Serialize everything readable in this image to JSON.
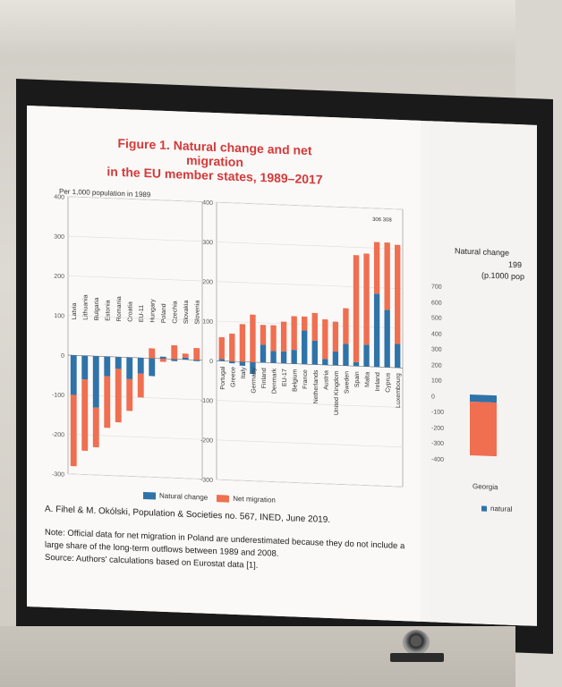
{
  "slide": {
    "title_line1": "Figure 1. Natural change and net migration",
    "title_line2": "in the EU member states, 1989–2017",
    "subtitle": "Per 1,000 population in 1989",
    "citation": "A. Fihel & M. Okólski, Population & Societies no. 567, INED, June 2019.",
    "note": "Note: Official data for net migration in Poland are underestimated because they do not include a large share of the long-term outflows between 1989 and 2008.",
    "source": "Source: Authors' calculations based on Eurostat data [1]."
  },
  "colors": {
    "natural": "#2f73a8",
    "migration": "#ef6f50",
    "title": "#d33a3a"
  },
  "chart_data": [
    {
      "type": "bar",
      "title": "",
      "ylim": [
        -300,
        400
      ],
      "yticks": [
        400,
        300,
        200,
        100,
        0,
        -100,
        -200,
        -300
      ],
      "categories": [
        "Latvia",
        "Lithuania",
        "Bulgaria",
        "Estonia",
        "Romania",
        "Croatia",
        "EU-11",
        "Hungary",
        "Poland",
        "Czechia",
        "Slovakia",
        "Slovenia"
      ],
      "series": [
        {
          "name": "Natural change",
          "values": [
            -100,
            -60,
            -130,
            -50,
            -30,
            -55,
            -40,
            -45,
            5,
            -5,
            5,
            -3
          ]
        },
        {
          "name": "Net migration",
          "values": [
            -180,
            -180,
            -100,
            -130,
            -135,
            -80,
            -60,
            25,
            -8,
            35,
            10,
            30
          ]
        }
      ]
    },
    {
      "type": "bar",
      "title": "",
      "ylim": [
        -300,
        400
      ],
      "yticks": [
        400,
        300,
        200,
        100,
        0,
        -100,
        -200,
        -300
      ],
      "categories": [
        "Portugal",
        "Greece",
        "Italy",
        "Germany",
        "Finland",
        "Denmark",
        "EU-17",
        "Belgium",
        "France",
        "Netherlands",
        "Austria",
        "United Kingdom",
        "Sweden",
        "Spain",
        "Malta",
        "Ireland",
        "Cyprus",
        "Luxembourg"
      ],
      "series": [
        {
          "name": "Natural change",
          "values": [
            5,
            -5,
            -10,
            -30,
            45,
            30,
            30,
            35,
            85,
            60,
            15,
            35,
            55,
            10,
            55,
            185,
            145,
            60
          ]
        },
        {
          "name": "Net migration",
          "values": [
            55,
            70,
            95,
            120,
            50,
            65,
            75,
            85,
            35,
            70,
            100,
            75,
            90,
            270,
            230,
            130,
            170,
            250
          ]
        }
      ],
      "annotations": [
        "306",
        "308"
      ]
    }
  ],
  "legend": {
    "natural": "Natural change",
    "migration": "Net migration"
  },
  "right_panel": {
    "title_line1": "Natural change",
    "title_line2": "199",
    "title_line3": "(p.1000 pop",
    "yticks": [
      "700",
      "600",
      "500",
      "400",
      "300",
      "200",
      "100",
      "0",
      "-100",
      "-200",
      "-300",
      "-400"
    ],
    "category": "Georgia",
    "legend_label": "natural"
  }
}
